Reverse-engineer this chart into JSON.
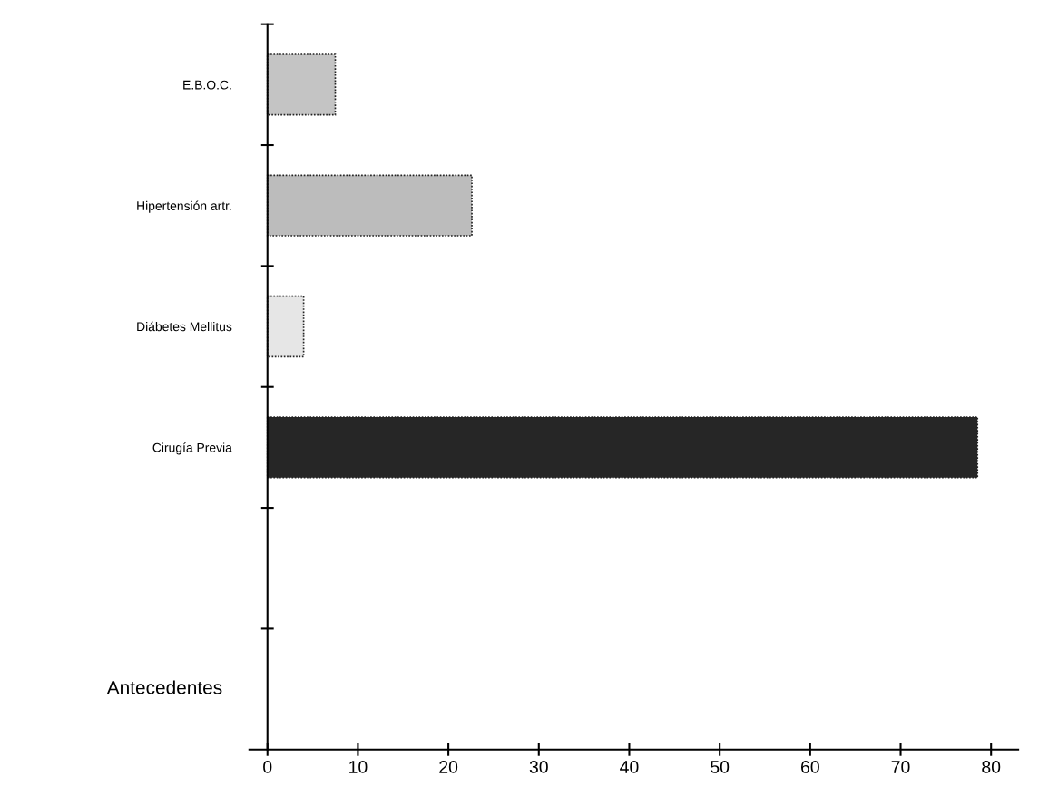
{
  "chart_data": {
    "type": "bar",
    "orientation": "horizontal",
    "ylabel": "Antecedentes",
    "categories": [
      "E.B.O.C.",
      "Hipertensión artr.",
      "Diábetes Mellitus",
      "Cirugía Previa",
      null
    ],
    "values": [
      7.5,
      22.6,
      4.0,
      78.5,
      null
    ],
    "colors": [
      "#c4c4c4",
      "#bcbcbc",
      "#e6e6e6",
      "#262626",
      "#ffffff"
    ],
    "xlim": [
      -2,
      83
    ],
    "xticks": [
      0,
      10,
      20,
      30,
      40,
      50,
      60,
      70,
      80
    ],
    "legend": false
  }
}
